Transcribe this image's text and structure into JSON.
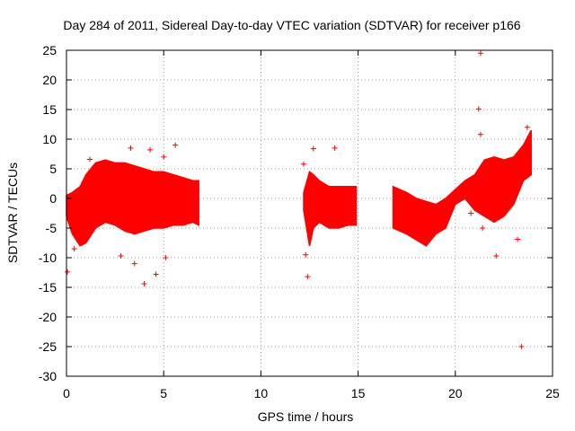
{
  "chart_data": {
    "type": "scatter",
    "title": "Day 284 of 2011, Sidereal Day-to-day VTEC variation (SDTVAR) for receiver p166",
    "xlabel": "GPS time / hours",
    "ylabel": "SDTVAR / TECUs",
    "xlim": [
      0,
      25
    ],
    "ylim": [
      -30,
      25
    ],
    "xticks": [
      0,
      5,
      10,
      15,
      20,
      25
    ],
    "yticks": [
      25,
      20,
      15,
      10,
      5,
      0,
      -5,
      -10,
      -15,
      -20,
      -25,
      -30
    ],
    "grid": true,
    "marker": "plus",
    "series_color": "#ff0000",
    "series": [
      {
        "name": "SDTVAR",
        "segments": [
          {
            "label": "segment-1",
            "upper": [
              [
                0.0,
                0.5
              ],
              [
                0.3,
                1.0
              ],
              [
                0.7,
                2.0
              ],
              [
                1.0,
                4.0
              ],
              [
                1.5,
                6.0
              ],
              [
                2.0,
                6.5
              ],
              [
                2.5,
                6.0
              ],
              [
                3.0,
                6.0
              ],
              [
                3.5,
                5.5
              ],
              [
                4.0,
                5.0
              ],
              [
                4.5,
                4.5
              ],
              [
                5.0,
                4.5
              ],
              [
                5.5,
                4.0
              ],
              [
                6.0,
                3.5
              ],
              [
                6.5,
                3.0
              ],
              [
                6.8,
                3.0
              ]
            ],
            "lower": [
              [
                0.0,
                -3.0
              ],
              [
                0.3,
                -6.0
              ],
              [
                0.7,
                -8.0
              ],
              [
                1.0,
                -7.5
              ],
              [
                1.5,
                -5.0
              ],
              [
                2.0,
                -4.0
              ],
              [
                2.5,
                -4.5
              ],
              [
                3.0,
                -5.5
              ],
              [
                3.5,
                -6.0
              ],
              [
                4.0,
                -5.5
              ],
              [
                4.5,
                -5.0
              ],
              [
                5.0,
                -5.0
              ],
              [
                5.5,
                -4.5
              ],
              [
                6.0,
                -4.5
              ],
              [
                6.5,
                -4.0
              ],
              [
                6.8,
                -4.5
              ]
            ]
          },
          {
            "label": "segment-2",
            "upper": [
              [
                12.2,
                1.0
              ],
              [
                12.5,
                4.5
              ],
              [
                12.7,
                4.0
              ],
              [
                13.0,
                3.0
              ],
              [
                13.5,
                2.0
              ],
              [
                14.0,
                2.0
              ],
              [
                14.5,
                2.0
              ],
              [
                14.9,
                2.0
              ]
            ],
            "lower": [
              [
                12.2,
                -2.0
              ],
              [
                12.5,
                -8.0
              ],
              [
                12.7,
                -5.0
              ],
              [
                13.0,
                -4.0
              ],
              [
                13.5,
                -5.0
              ],
              [
                14.0,
                -5.0
              ],
              [
                14.5,
                -4.5
              ],
              [
                14.9,
                -4.5
              ]
            ]
          },
          {
            "label": "segment-3",
            "upper": [
              [
                16.8,
                2.0
              ],
              [
                17.5,
                1.0
              ],
              [
                18.0,
                0.0
              ],
              [
                18.5,
                -0.5
              ],
              [
                19.0,
                -1.0
              ],
              [
                19.5,
                0.0
              ],
              [
                20.0,
                1.5
              ],
              [
                20.5,
                3.0
              ],
              [
                21.0,
                4.0
              ],
              [
                21.5,
                6.5
              ],
              [
                22.0,
                7.0
              ],
              [
                22.5,
                6.5
              ],
              [
                23.0,
                7.0
              ],
              [
                23.5,
                9.0
              ],
              [
                23.9,
                11.5
              ]
            ],
            "lower": [
              [
                16.8,
                -5.0
              ],
              [
                17.5,
                -6.0
              ],
              [
                18.0,
                -7.0
              ],
              [
                18.5,
                -8.0
              ],
              [
                19.0,
                -6.0
              ],
              [
                19.5,
                -5.0
              ],
              [
                20.0,
                -1.0
              ],
              [
                20.5,
                0.0
              ],
              [
                21.0,
                -2.0
              ],
              [
                21.5,
                -3.0
              ],
              [
                22.0,
                -4.0
              ],
              [
                22.5,
                -3.0
              ],
              [
                23.0,
                -1.0
              ],
              [
                23.5,
                3.0
              ],
              [
                23.9,
                4.0
              ]
            ]
          }
        ],
        "outliers": [
          [
            0.05,
            -12.4
          ],
          [
            0.4,
            -8.5
          ],
          [
            1.2,
            6.6
          ],
          [
            2.8,
            -9.7
          ],
          [
            3.3,
            8.5
          ],
          [
            3.5,
            -11.0
          ],
          [
            4.0,
            -14.4
          ],
          [
            4.6,
            -12.8
          ],
          [
            5.1,
            -10.0
          ],
          [
            4.3,
            8.2
          ],
          [
            5.6,
            9.0
          ],
          [
            5.0,
            7.0
          ],
          [
            12.2,
            5.8
          ],
          [
            12.3,
            -9.5
          ],
          [
            12.4,
            -13.2
          ],
          [
            12.7,
            8.4
          ],
          [
            13.8,
            8.5
          ],
          [
            21.3,
            24.5
          ],
          [
            21.2,
            15.1
          ],
          [
            21.3,
            10.8
          ],
          [
            20.8,
            -2.5
          ],
          [
            21.4,
            -5.0
          ],
          [
            22.1,
            -9.7
          ],
          [
            23.2,
            -6.9
          ],
          [
            23.4,
            -25.0
          ],
          [
            23.7,
            12.0
          ]
        ]
      }
    ]
  }
}
